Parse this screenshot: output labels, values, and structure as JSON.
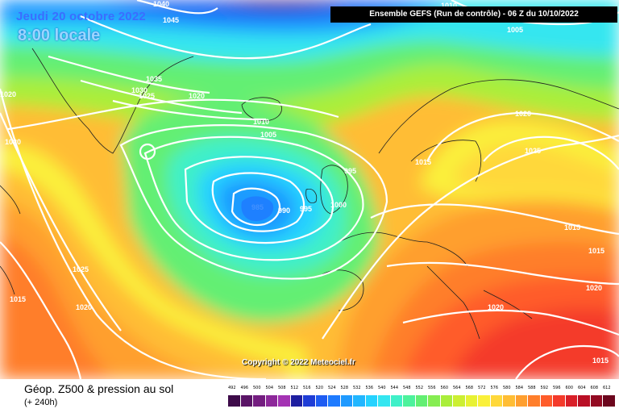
{
  "header": {
    "date": "Jeudi 20 octobre 2022",
    "time": "8:00 locale",
    "run": "Ensemble GEFS  (Run de contrôle)  -  06 Z du 10/10/2022"
  },
  "copyright": "Copyright © 2022 Meteociel.fr",
  "footer": {
    "parameter": "Géop. Z500 & pression au sol",
    "lead_time": "(+ 240h)"
  },
  "legend": {
    "ticks": [
      "492",
      "496",
      "500",
      "504",
      "508",
      "512",
      "516",
      "520",
      "524",
      "528",
      "532",
      "536",
      "540",
      "544",
      "548",
      "552",
      "556",
      "560",
      "564",
      "568",
      "572",
      "576",
      "580",
      "584",
      "588",
      "592",
      "596",
      "600",
      "604",
      "608",
      "612"
    ],
    "colors": [
      "#3d0b49",
      "#5a1466",
      "#741d80",
      "#8d289a",
      "#a433b3",
      "#1e1ea0",
      "#1f3dd6",
      "#1e5cf2",
      "#1e7bff",
      "#1f9aff",
      "#21b6ff",
      "#25d2ff",
      "#34e6f0",
      "#3ff0c8",
      "#4df29c",
      "#63ef73",
      "#86ed52",
      "#aaee3a",
      "#ccef32",
      "#e8f233",
      "#faf03a",
      "#ffd83a",
      "#ffbd34",
      "#ff9f2f",
      "#ff7e2b",
      "#ff5c2a",
      "#f43a2a",
      "#d91f28",
      "#b90f25",
      "#930a22",
      "#6c061d"
    ]
  },
  "isobars": [
    {
      "label": "1040"
    },
    {
      "label": "1045"
    },
    {
      "label": "1010"
    },
    {
      "label": "1005"
    },
    {
      "label": "1035"
    },
    {
      "label": "1030"
    },
    {
      "label": "1025"
    },
    {
      "label": "1020"
    },
    {
      "label": "1020"
    },
    {
      "label": "1020"
    },
    {
      "label": "1010"
    },
    {
      "label": "1005"
    },
    {
      "label": "995"
    },
    {
      "label": "985"
    },
    {
      "label": "990"
    },
    {
      "label": "995"
    },
    {
      "label": "1000"
    },
    {
      "label": "1015"
    },
    {
      "label": "1020"
    },
    {
      "label": "1025"
    },
    {
      "label": "1015"
    },
    {
      "label": "1015"
    },
    {
      "label": "1020"
    },
    {
      "label": "1020"
    },
    {
      "label": "1025"
    },
    {
      "label": "1015"
    },
    {
      "label": "1020"
    },
    {
      "label": "1015"
    }
  ]
}
